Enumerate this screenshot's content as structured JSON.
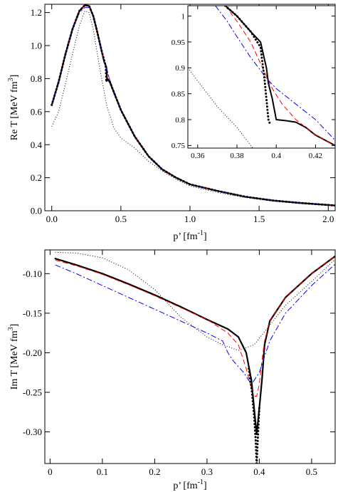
{
  "chart_data": [
    {
      "type": "line",
      "panel": "top",
      "xlim": [
        -0.05,
        2.05
      ],
      "ylim": [
        0,
        1.25
      ],
      "xticks": [
        0.0,
        0.5,
        1.0,
        1.5,
        2.0
      ],
      "xtick_labels": [
        "0.0",
        "0.5",
        "1.0",
        "1.5",
        "2.0"
      ],
      "yticks": [
        0,
        0.2,
        0.4,
        0.6,
        0.8,
        1.0,
        1.2
      ],
      "ytick_labels": [
        "0.0",
        "0.2",
        "0.4",
        "0.6",
        "0.8",
        "1.0",
        "1.2"
      ],
      "xlabel_main": "p’ [fm",
      "xlabel_sup": "-1",
      "xlabel_end": "]",
      "ylabel_main": "Re T [MeV fm",
      "ylabel_sup": "3",
      "ylabel_end": "]",
      "grid": false,
      "series": [
        {
          "style": "solid",
          "color": "#000000",
          "width": 2.2,
          "x": [
            0.0,
            0.05,
            0.1,
            0.15,
            0.2,
            0.24,
            0.27,
            0.3,
            0.33,
            0.36,
            0.38,
            0.395,
            0.4,
            0.42,
            0.5,
            0.6,
            0.7,
            0.8,
            0.9,
            1.0,
            1.2,
            1.4,
            1.6,
            1.8,
            2.0,
            2.05
          ],
          "y": [
            0.64,
            0.78,
            0.95,
            1.1,
            1.21,
            1.245,
            1.24,
            1.18,
            1.08,
            0.97,
            0.9,
            0.87,
            0.8,
            0.78,
            0.61,
            0.45,
            0.33,
            0.25,
            0.2,
            0.16,
            0.12,
            0.085,
            0.062,
            0.047,
            0.035,
            0.032
          ]
        },
        {
          "style": "dashed",
          "color": "#ff0000",
          "width": 1,
          "x": [
            0.0,
            0.05,
            0.1,
            0.15,
            0.2,
            0.24,
            0.27,
            0.3,
            0.33,
            0.36,
            0.38,
            0.395,
            0.42,
            0.5,
            0.6,
            0.7,
            0.8,
            0.9,
            1.0,
            1.2,
            1.4,
            1.6,
            1.8,
            2.0,
            2.05
          ],
          "y": [
            0.64,
            0.78,
            0.95,
            1.1,
            1.21,
            1.24,
            1.235,
            1.18,
            1.08,
            0.97,
            0.9,
            0.86,
            0.79,
            0.61,
            0.45,
            0.33,
            0.25,
            0.2,
            0.16,
            0.12,
            0.085,
            0.062,
            0.047,
            0.035,
            0.032
          ]
        },
        {
          "style": "dashdot",
          "color": "#0000ff",
          "width": 1,
          "x": [
            0.0,
            0.05,
            0.1,
            0.15,
            0.2,
            0.24,
            0.27,
            0.3,
            0.33,
            0.36,
            0.38,
            0.395,
            0.42,
            0.5,
            0.6,
            0.7,
            0.8,
            0.9,
            1.0,
            1.2,
            1.4,
            1.6,
            1.8,
            2.0,
            2.05
          ],
          "y": [
            0.64,
            0.78,
            0.95,
            1.1,
            1.2,
            1.23,
            1.23,
            1.18,
            1.08,
            0.97,
            0.91,
            0.87,
            0.79,
            0.61,
            0.45,
            0.33,
            0.25,
            0.2,
            0.16,
            0.12,
            0.085,
            0.062,
            0.047,
            0.035,
            0.032
          ]
        },
        {
          "style": "thickdot",
          "color": "#000000",
          "width": 3,
          "x": [
            0.0,
            0.05,
            0.1,
            0.15,
            0.2,
            0.24,
            0.27,
            0.3,
            0.33,
            0.36,
            0.38,
            0.39,
            0.395,
            0.4,
            0.42,
            0.5,
            0.6,
            0.7,
            0.8,
            0.9,
            1.0,
            1.2,
            1.4,
            1.6,
            1.8,
            2.0,
            2.05
          ],
          "y": [
            0.64,
            0.78,
            0.95,
            1.1,
            1.21,
            1.245,
            1.24,
            1.18,
            1.08,
            0.97,
            0.91,
            0.88,
            0.78,
            0.8,
            0.78,
            0.61,
            0.45,
            0.33,
            0.25,
            0.2,
            0.16,
            0.12,
            0.085,
            0.062,
            0.047,
            0.035,
            0.032
          ]
        },
        {
          "style": "dotted",
          "color": "#000000",
          "width": 1,
          "x": [
            0.0,
            0.05,
            0.1,
            0.15,
            0.2,
            0.24,
            0.27,
            0.3,
            0.35,
            0.4,
            0.45,
            0.5,
            0.55,
            0.6,
            0.7,
            0.8,
            0.9,
            1.0,
            1.2,
            1.4,
            1.6,
            1.8,
            2.0,
            2.05
          ],
          "y": [
            0.51,
            0.6,
            0.77,
            0.95,
            1.12,
            1.21,
            1.2,
            1.1,
            0.85,
            0.63,
            0.5,
            0.44,
            0.41,
            0.38,
            0.3,
            0.24,
            0.19,
            0.15,
            0.11,
            0.08,
            0.058,
            0.044,
            0.033,
            0.03
          ]
        }
      ]
    },
    {
      "type": "line",
      "panel": "inset",
      "xlim": [
        0.355,
        0.43
      ],
      "ylim": [
        0.745,
        1.02
      ],
      "xticks": [
        0.36,
        0.38,
        0.4,
        0.42
      ],
      "xtick_labels": [
        "0.36",
        "0.38",
        "0.4",
        "0.42"
      ],
      "yticks": [
        0.75,
        0.8,
        0.85,
        0.9,
        0.95,
        1.0
      ],
      "ytick_labels": [
        "0.75",
        "0.8",
        "0.85",
        "0.9",
        "0.95",
        "1"
      ],
      "grid": false,
      "series": [
        {
          "style": "solid",
          "color": "#000000",
          "width": 2,
          "x": [
            0.374,
            0.38,
            0.387,
            0.392,
            0.395,
            0.396,
            0.398,
            0.4,
            0.405,
            0.41,
            0.415,
            0.42,
            0.43
          ],
          "y": [
            1.02,
            1.0,
            0.97,
            0.95,
            0.9,
            0.87,
            0.84,
            0.8,
            0.798,
            0.795,
            0.785,
            0.77,
            0.75
          ]
        },
        {
          "style": "dashed",
          "color": "#ff0000",
          "width": 1,
          "x": [
            0.374,
            0.38,
            0.387,
            0.393,
            0.398,
            0.403,
            0.41,
            0.415,
            0.42,
            0.43
          ],
          "y": [
            1.02,
            0.99,
            0.95,
            0.9,
            0.86,
            0.83,
            0.8,
            0.785,
            0.77,
            0.75
          ]
        },
        {
          "style": "dashdot",
          "color": "#0000ff",
          "width": 1,
          "x": [
            0.369,
            0.375,
            0.38,
            0.387,
            0.395,
            0.4,
            0.41,
            0.42,
            0.43
          ],
          "y": [
            1.02,
            0.99,
            0.96,
            0.92,
            0.88,
            0.86,
            0.83,
            0.8,
            0.76
          ]
        },
        {
          "style": "thickdot",
          "color": "#000000",
          "width": 3,
          "x": [
            0.374,
            0.38,
            0.387,
            0.392,
            0.394,
            0.395,
            0.396,
            0.397
          ],
          "y": [
            1.02,
            1.0,
            0.97,
            0.94,
            0.88,
            0.84,
            0.8,
            0.79
          ]
        },
        {
          "style": "dotted",
          "color": "#000000",
          "width": 1,
          "x": [
            0.355,
            0.36,
            0.365,
            0.37,
            0.375,
            0.38,
            0.385,
            0.388
          ],
          "y": [
            0.9,
            0.875,
            0.85,
            0.825,
            0.805,
            0.785,
            0.76,
            0.745
          ]
        }
      ]
    },
    {
      "type": "line",
      "panel": "bottom",
      "xlim": [
        -0.01,
        0.545
      ],
      "ylim": [
        -0.34,
        -0.07
      ],
      "xticks": [
        0,
        0.1,
        0.2,
        0.3,
        0.4,
        0.5
      ],
      "xtick_labels": [
        "0",
        "0.1",
        "0.2",
        "0.3",
        "0.4",
        "0.5"
      ],
      "yticks": [
        -0.1,
        -0.15,
        -0.2,
        -0.25,
        -0.3
      ],
      "ytick_labels": [
        "-0.10",
        "-0.15",
        "-0.20",
        "-0.25",
        "-0.30"
      ],
      "xlabel_main": "p’ [fm",
      "xlabel_sup": "-1",
      "xlabel_end": "]",
      "ylabel_main": "Im T [MeV fm",
      "ylabel_sup": "3",
      "ylabel_end": "]",
      "grid": false,
      "series": [
        {
          "style": "solid",
          "color": "#000000",
          "width": 2.2,
          "x": [
            0.01,
            0.05,
            0.1,
            0.15,
            0.2,
            0.25,
            0.3,
            0.34,
            0.36,
            0.375,
            0.385,
            0.39,
            0.395,
            0.4,
            0.405,
            0.41,
            0.42,
            0.45,
            0.5,
            0.545
          ],
          "y": [
            -0.081,
            -0.089,
            -0.1,
            -0.113,
            -0.127,
            -0.142,
            -0.158,
            -0.17,
            -0.18,
            -0.2,
            -0.235,
            -0.27,
            -0.303,
            -0.27,
            -0.235,
            -0.19,
            -0.16,
            -0.13,
            -0.1,
            -0.078
          ]
        },
        {
          "style": "dashed",
          "color": "#ff0000",
          "width": 1,
          "x": [
            0.01,
            0.05,
            0.1,
            0.15,
            0.2,
            0.25,
            0.3,
            0.34,
            0.36,
            0.375,
            0.385,
            0.39,
            0.395,
            0.4,
            0.405,
            0.41,
            0.42,
            0.45,
            0.5,
            0.545
          ],
          "y": [
            -0.083,
            -0.09,
            -0.101,
            -0.114,
            -0.128,
            -0.143,
            -0.158,
            -0.175,
            -0.19,
            -0.22,
            -0.245,
            -0.255,
            -0.255,
            -0.24,
            -0.21,
            -0.185,
            -0.16,
            -0.13,
            -0.1,
            -0.078
          ]
        },
        {
          "style": "dashdot",
          "color": "#0000ff",
          "width": 1,
          "x": [
            0.01,
            0.05,
            0.1,
            0.15,
            0.2,
            0.25,
            0.3,
            0.33,
            0.34,
            0.35,
            0.37,
            0.385,
            0.39,
            0.4,
            0.42,
            0.45,
            0.5,
            0.545
          ],
          "y": [
            -0.089,
            -0.1,
            -0.115,
            -0.13,
            -0.145,
            -0.16,
            -0.175,
            -0.185,
            -0.2,
            -0.21,
            -0.225,
            -0.24,
            -0.235,
            -0.225,
            -0.185,
            -0.15,
            -0.115,
            -0.088
          ]
        },
        {
          "style": "thickdot",
          "color": "#000000",
          "width": 3,
          "x": [
            0.38,
            0.386,
            0.39,
            0.393,
            0.395,
            0.397,
            0.4
          ],
          "y": [
            -0.22,
            -0.25,
            -0.28,
            -0.31,
            -0.34,
            -0.31,
            -0.27
          ]
        },
        {
          "style": "dotted",
          "color": "#000000",
          "width": 1,
          "x": [
            0.01,
            0.05,
            0.1,
            0.15,
            0.2,
            0.25,
            0.3,
            0.33,
            0.36,
            0.39,
            0.42,
            0.45,
            0.5,
            0.545
          ],
          "y": [
            -0.073,
            -0.074,
            -0.08,
            -0.095,
            -0.12,
            -0.155,
            -0.18,
            -0.19,
            -0.197,
            -0.19,
            -0.165,
            -0.14,
            -0.11,
            -0.082
          ]
        }
      ]
    }
  ]
}
